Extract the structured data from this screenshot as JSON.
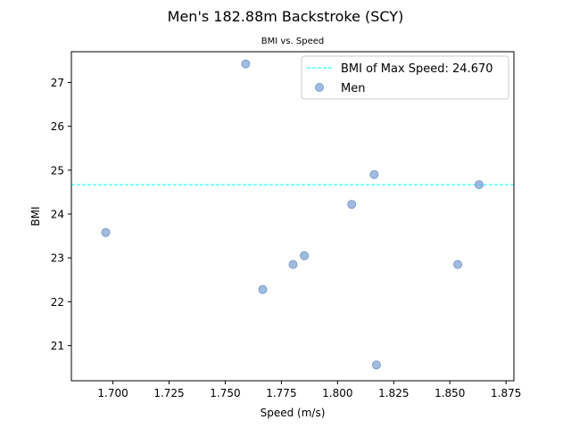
{
  "chart_data": {
    "type": "scatter",
    "title": "Men's 182.88m Backstroke (SCY)",
    "subtitle": "BMI vs. Speed",
    "xlabel": "Speed (m/s)",
    "ylabel": "BMI",
    "xlim": [
      1.6815,
      1.8785
    ],
    "ylim": [
      20.2,
      27.7
    ],
    "xticks": [
      "1.700",
      "1.725",
      "1.750",
      "1.775",
      "1.800",
      "1.825",
      "1.850",
      "1.875"
    ],
    "xtick_values": [
      1.7,
      1.725,
      1.75,
      1.775,
      1.8,
      1.825,
      1.85,
      1.875
    ],
    "yticks": [
      "21",
      "22",
      "23",
      "24",
      "25",
      "26",
      "27"
    ],
    "ytick_values": [
      21,
      22,
      23,
      24,
      25,
      26,
      27
    ],
    "grid": false,
    "legend_position": "upper right",
    "series": [
      {
        "name": "Men",
        "color": "#7b9fd0",
        "points": [
          {
            "x": 1.6968,
            "y": 23.58
          },
          {
            "x": 1.7591,
            "y": 27.42
          },
          {
            "x": 1.7667,
            "y": 22.28
          },
          {
            "x": 1.7802,
            "y": 22.85
          },
          {
            "x": 1.7852,
            "y": 23.05
          },
          {
            "x": 1.8063,
            "y": 24.22
          },
          {
            "x": 1.8163,
            "y": 24.9
          },
          {
            "x": 1.8173,
            "y": 20.56
          },
          {
            "x": 1.8535,
            "y": 22.85
          },
          {
            "x": 1.863,
            "y": 24.67
          }
        ]
      }
    ],
    "reference_line": {
      "name": "BMI of Max Speed: 24.670",
      "y": 24.67,
      "color": "#00ffff",
      "style": "dashed"
    }
  }
}
